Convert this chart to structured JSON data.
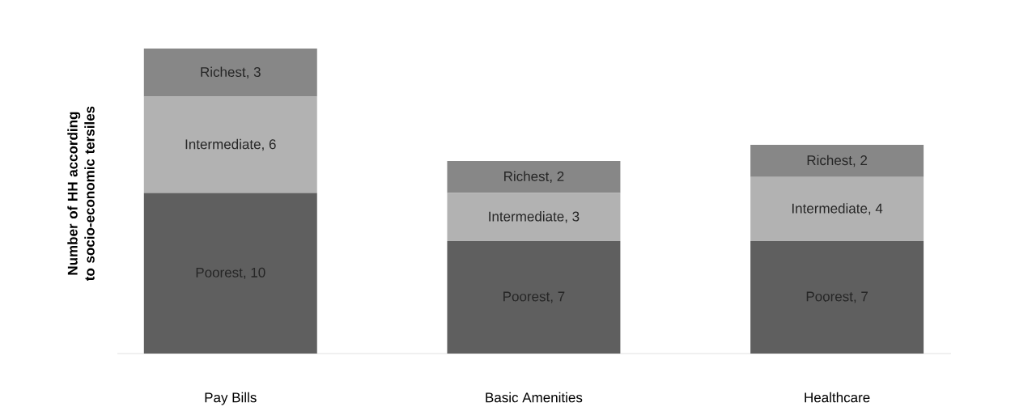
{
  "chart_data": {
    "type": "bar",
    "stacked": true,
    "ylabel": "Number of HH according to socio-economic tersiles",
    "categories": [
      "Pay Bills",
      "Basic Amenities",
      "Healthcare"
    ],
    "series": [
      {
        "color": "#5f5f5f",
        "values": [
          10,
          7,
          7
        ],
        "value_labels": [
          "Poorest, 10",
          "Poorest, 7",
          "Poorest, 7"
        ]
      },
      {
        "color": "#b2b2b2",
        "values": [
          6,
          3,
          4
        ],
        "value_labels": [
          "Intermediate, 6",
          "Intermediate, 3",
          "Intermediate, 4"
        ]
      },
      {
        "color": "#878787",
        "values": [
          3,
          2,
          2
        ],
        "value_labels": [
          "Richest, 3",
          "Richest, 2",
          "Richest, 2"
        ]
      }
    ]
  }
}
